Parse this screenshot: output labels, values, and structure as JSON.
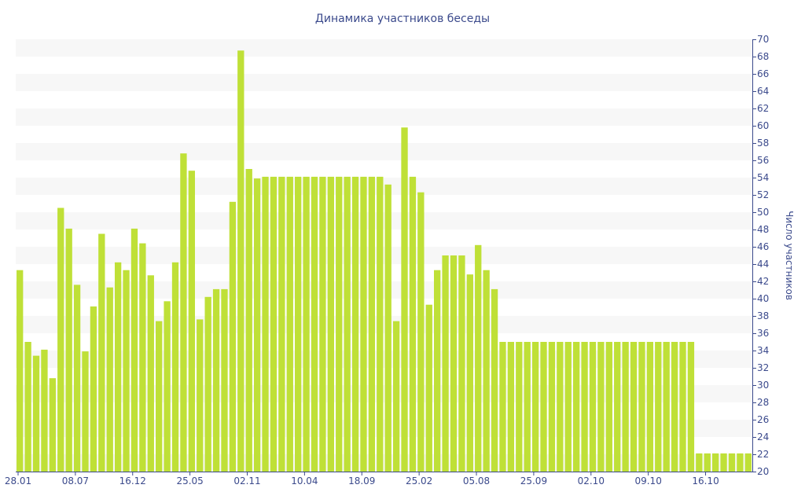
{
  "chart_data": {
    "type": "bar",
    "title": "Динамика участников беседы",
    "ylabel": "Число участников",
    "xlabel": "",
    "ylim": [
      20,
      70
    ],
    "yticks": [
      20,
      22,
      24,
      26,
      28,
      30,
      32,
      34,
      36,
      38,
      40,
      42,
      44,
      46,
      48,
      50,
      52,
      54,
      56,
      58,
      60,
      62,
      64,
      66,
      68,
      70
    ],
    "y_axis_side": "right",
    "grid": "alternating horizontal bands",
    "bar_color": "#bfe037",
    "band_color": "#f7f7f7",
    "text_color": "#3b4a8c",
    "x_tick_labels": [
      {
        "label": "28.01",
        "index": 0
      },
      {
        "label": "08.07",
        "index": 7
      },
      {
        "label": "16.12",
        "index": 14
      },
      {
        "label": "25.05",
        "index": 21
      },
      {
        "label": "02.11",
        "index": 28
      },
      {
        "label": "10.04",
        "index": 35
      },
      {
        "label": "18.09",
        "index": 42
      },
      {
        "label": "25.02",
        "index": 49
      },
      {
        "label": "05.08",
        "index": 56
      },
      {
        "label": "25.09",
        "index": 63
      },
      {
        "label": "02.10",
        "index": 70
      },
      {
        "label": "09.10",
        "index": 77
      },
      {
        "label": "16.10",
        "index": 84
      }
    ],
    "values": [
      43.3,
      35,
      33.4,
      34.1,
      30.8,
      50.5,
      48.1,
      41.6,
      33.9,
      39.1,
      47.5,
      41.3,
      44.2,
      43.3,
      48.1,
      46.4,
      42.7,
      37.4,
      39.7,
      44.2,
      56.8,
      54.8,
      37.6,
      40.2,
      41.1,
      41.1,
      51.2,
      68.7,
      55,
      53.9,
      54.1,
      54.1,
      54.1,
      54.1,
      54.1,
      54.1,
      54.1,
      54.1,
      54.1,
      54.1,
      54.1,
      54.1,
      54.1,
      54.1,
      54.1,
      53.2,
      37.4,
      59.8,
      54.1,
      52.3,
      39.3,
      43.3,
      45,
      45,
      45,
      42.8,
      46.2,
      43.3,
      41.1,
      35,
      35,
      35,
      35,
      35,
      35,
      35,
      35,
      35,
      35,
      35,
      35,
      35,
      35,
      35,
      35,
      35,
      35,
      35,
      35,
      35,
      35,
      35,
      35,
      22.1,
      22.1,
      22.1,
      22.1,
      22.1,
      22.1,
      22.1
    ]
  }
}
